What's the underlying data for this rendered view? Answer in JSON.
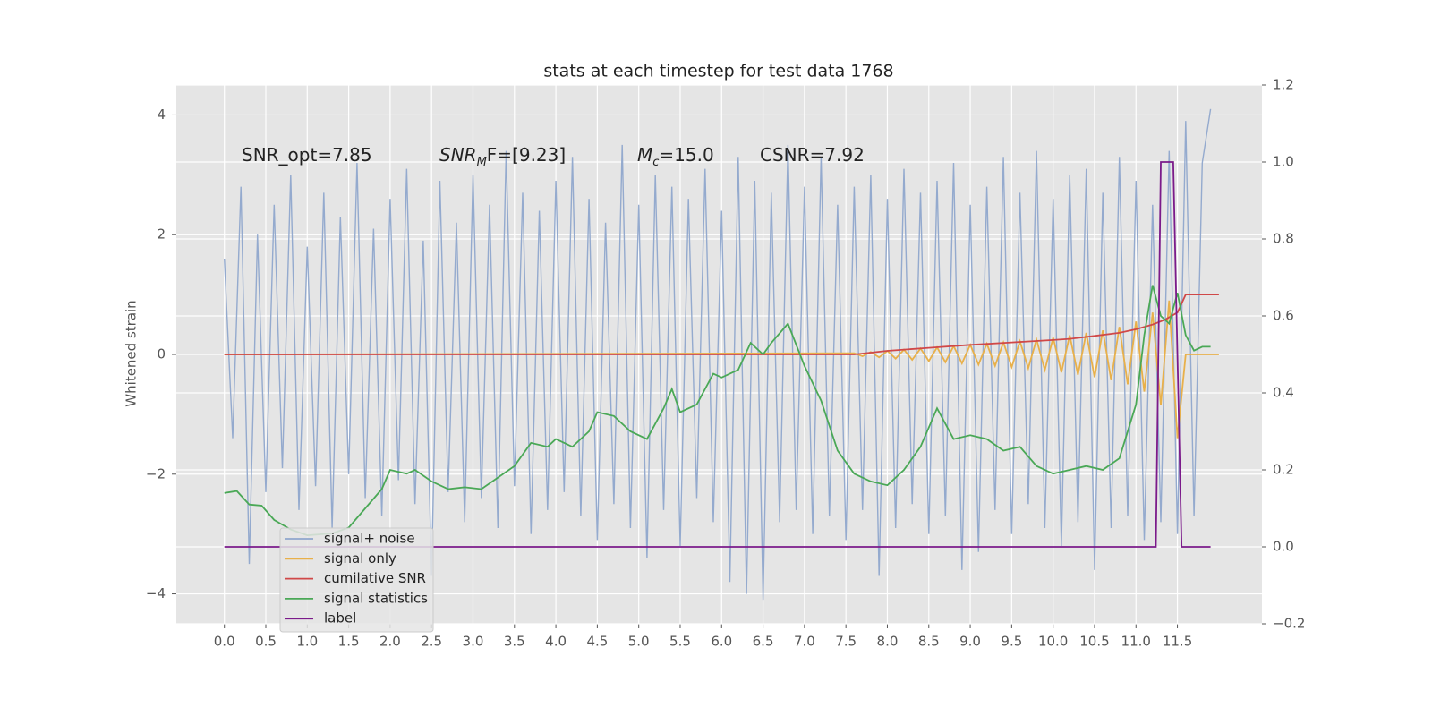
{
  "chart_data": {
    "type": "line",
    "title": "stats at each timestep for test data 1768",
    "y_label": "Whitened strain",
    "grid": true,
    "legend_position": "lower left",
    "xlim": [
      -0.58,
      12.52
    ],
    "ylim": [
      -4.5,
      4.5
    ],
    "y2lim": [
      -0.2,
      1.2
    ],
    "xticks": [
      {
        "value": 0,
        "label": "0.0"
      },
      0.5,
      {
        "value": 1,
        "label": "1.0"
      },
      1.5,
      {
        "value": 2,
        "label": "2.0"
      },
      2.5,
      {
        "value": 3,
        "label": "3.0"
      },
      3.5,
      {
        "value": 4,
        "label": "4.0"
      },
      4.5,
      {
        "value": 5,
        "label": "5.0"
      },
      5.5,
      {
        "value": 6,
        "label": "6.0"
      },
      6.5,
      {
        "value": 7,
        "label": "7.0"
      },
      7.5,
      {
        "value": 8,
        "label": "8.0"
      },
      8.5,
      {
        "value": 9,
        "label": "9.0"
      },
      9.5,
      {
        "value": 10,
        "label": "10.0"
      },
      10.5,
      {
        "value": 11,
        "label": "11.0"
      },
      11.5
    ],
    "yticks": [
      {
        "value": -4,
        "label": "−4"
      },
      {
        "value": -2,
        "label": "−2"
      },
      0,
      2,
      4
    ],
    "y2ticks": [
      {
        "value": -0.2,
        "label": "−0.2"
      },
      {
        "value": 0,
        "label": "0.0"
      },
      0.2,
      0.4,
      0.6,
      0.8,
      {
        "value": 1,
        "label": "1.0"
      },
      1.2
    ],
    "annotations": [
      {
        "text": "SNR_opt=7.85"
      },
      {
        "text": "SNR",
        "sub": "M",
        "rest": "F=[9.23]"
      },
      {
        "text": "M",
        "sub": "c",
        "rest": "=15.0"
      },
      {
        "text": "CSNR=7.92"
      }
    ],
    "series": [
      {
        "name": "signal+ noise",
        "color": "#8fa6cc",
        "x": [
          0,
          0.1,
          0.2,
          0.3,
          0.4,
          0.5,
          0.6,
          0.7,
          0.8,
          0.9,
          1,
          1.1,
          1.2,
          1.3,
          1.4,
          1.5,
          1.6,
          1.7,
          1.8,
          1.9,
          2,
          2.1,
          2.2,
          2.3,
          2.4,
          2.5,
          2.6,
          2.7,
          2.8,
          2.9,
          3,
          3.1,
          3.2,
          3.3,
          3.4,
          3.5,
          3.6,
          3.7,
          3.8,
          3.9,
          4,
          4.1,
          4.2,
          4.3,
          4.4,
          4.5,
          4.6,
          4.7,
          4.8,
          4.9,
          5,
          5.1,
          5.2,
          5.3,
          5.4,
          5.5,
          5.6,
          5.7,
          5.8,
          5.9,
          6,
          6.1,
          6.2,
          6.3,
          6.4,
          6.5,
          6.6,
          6.7,
          6.8,
          6.9,
          7,
          7.1,
          7.2,
          7.3,
          7.4,
          7.5,
          7.6,
          7.7,
          7.8,
          7.9,
          8,
          8.1,
          8.2,
          8.3,
          8.4,
          8.5,
          8.6,
          8.7,
          8.8,
          8.9,
          9,
          9.1,
          9.2,
          9.3,
          9.4,
          9.5,
          9.6,
          9.7,
          9.8,
          9.9,
          10,
          10.1,
          10.2,
          10.3,
          10.4,
          10.5,
          10.6,
          10.7,
          10.8,
          10.9,
          11,
          11.1,
          11.2,
          11.3,
          11.4,
          11.5,
          11.6,
          11.7,
          11.8,
          11.9
        ],
        "values": [
          1.6,
          -1.4,
          2.8,
          -3.5,
          2.0,
          -2.3,
          2.5,
          -1.9,
          3.0,
          -2.6,
          1.8,
          -2.2,
          2.7,
          -2.9,
          2.3,
          -2.0,
          3.2,
          -2.4,
          2.1,
          -2.7,
          2.6,
          -2.1,
          3.1,
          -2.5,
          1.9,
          -3.7,
          2.9,
          -2.3,
          2.2,
          -2.8,
          3.0,
          -2.4,
          2.5,
          -2.9,
          3.4,
          -2.2,
          2.7,
          -3.0,
          2.4,
          -2.6,
          2.9,
          -2.3,
          3.3,
          -2.7,
          2.6,
          -3.1,
          2.2,
          -2.5,
          3.5,
          -2.9,
          2.5,
          -3.4,
          3.0,
          -2.6,
          2.8,
          -3.2,
          2.6,
          -2.4,
          3.1,
          -2.8,
          2.4,
          -3.8,
          3.3,
          -4.0,
          2.9,
          -4.1,
          2.7,
          -2.8,
          3.5,
          -2.6,
          2.8,
          -3.0,
          3.3,
          -2.7,
          2.5,
          -3.1,
          2.8,
          -2.6,
          3.0,
          -3.7,
          2.6,
          -2.9,
          3.1,
          -2.5,
          2.7,
          -3.0,
          2.9,
          -2.7,
          3.2,
          -3.6,
          2.5,
          -3.3,
          2.8,
          -2.6,
          3.3,
          -3.0,
          2.7,
          -2.5,
          3.4,
          -2.9,
          2.6,
          -3.2,
          3.0,
          -2.8,
          3.1,
          -3.6,
          2.7,
          -2.9,
          3.3,
          -2.7,
          2.9,
          -3.1,
          2.5,
          -2.8,
          3.4,
          -3.0,
          3.9,
          -2.7,
          3.2,
          4.1
        ]
      },
      {
        "name": "signal only",
        "color": "#e8b04a",
        "x": [
          0,
          7.6,
          7.7,
          7.8,
          7.9,
          8,
          8.1,
          8.2,
          8.3,
          8.4,
          8.5,
          8.6,
          8.7,
          8.8,
          8.9,
          9,
          9.1,
          9.2,
          9.3,
          9.4,
          9.5,
          9.6,
          9.7,
          9.8,
          9.9,
          10,
          10.1,
          10.2,
          10.3,
          10.4,
          10.5,
          10.6,
          10.7,
          10.8,
          10.9,
          11,
          11.1,
          11.2,
          11.3,
          11.4,
          11.5,
          11.6,
          12
        ],
        "values": [
          0,
          0.02,
          -0.03,
          0.04,
          -0.05,
          0.06,
          -0.07,
          0.08,
          -0.09,
          0.1,
          -0.11,
          0.12,
          -0.13,
          0.14,
          -0.15,
          0.16,
          -0.17,
          0.18,
          -0.19,
          0.2,
          -0.21,
          0.22,
          -0.23,
          0.25,
          -0.26,
          0.28,
          -0.3,
          0.32,
          -0.34,
          0.36,
          -0.38,
          0.4,
          -0.43,
          0.46,
          -0.5,
          0.55,
          -0.62,
          0.7,
          -0.85,
          0.9,
          -1.4,
          0,
          0
        ]
      },
      {
        "name": "cumilative SNR",
        "color": "#d04848",
        "x": [
          0,
          7.6,
          8,
          8.5,
          9,
          9.5,
          10,
          10.2,
          10.5,
          10.8,
          11,
          11.2,
          11.35,
          11.5,
          11.6,
          12
        ],
        "values": [
          0,
          0,
          0.06,
          0.11,
          0.16,
          0.2,
          0.24,
          0.26,
          0.31,
          0.36,
          0.42,
          0.5,
          0.58,
          0.7,
          1.0,
          1.0
        ]
      },
      {
        "name": "signal statistics",
        "color": "#4aa856",
        "axis": "y2",
        "x": [
          0,
          0.15,
          0.3,
          0.45,
          0.6,
          0.8,
          1.0,
          1.3,
          1.5,
          1.7,
          1.9,
          2.0,
          2.2,
          2.3,
          2.5,
          2.7,
          2.9,
          3.1,
          3.3,
          3.5,
          3.7,
          3.9,
          4.0,
          4.2,
          4.4,
          4.5,
          4.7,
          4.9,
          5.1,
          5.3,
          5.4,
          5.5,
          5.7,
          5.9,
          6.0,
          6.2,
          6.35,
          6.5,
          6.6,
          6.8,
          7.0,
          7.2,
          7.4,
          7.6,
          7.8,
          8.0,
          8.2,
          8.4,
          8.6,
          8.8,
          9.0,
          9.2,
          9.4,
          9.6,
          9.8,
          10.0,
          10.2,
          10.4,
          10.6,
          10.8,
          11.0,
          11.1,
          11.2,
          11.3,
          11.4,
          11.5,
          11.6,
          11.7,
          11.8,
          11.9
        ],
        "values": [
          0.14,
          0.145,
          0.11,
          0.107,
          0.07,
          0.045,
          0.03,
          0.035,
          0.05,
          0.1,
          0.15,
          0.2,
          0.19,
          0.2,
          0.17,
          0.15,
          0.155,
          0.15,
          0.18,
          0.21,
          0.27,
          0.26,
          0.28,
          0.26,
          0.3,
          0.35,
          0.34,
          0.3,
          0.28,
          0.36,
          0.41,
          0.35,
          0.37,
          0.45,
          0.44,
          0.46,
          0.53,
          0.5,
          0.53,
          0.58,
          0.47,
          0.38,
          0.25,
          0.19,
          0.17,
          0.16,
          0.2,
          0.26,
          0.36,
          0.28,
          0.29,
          0.28,
          0.25,
          0.26,
          0.21,
          0.19,
          0.2,
          0.21,
          0.2,
          0.23,
          0.37,
          0.55,
          0.68,
          0.6,
          0.58,
          0.66,
          0.55,
          0.51,
          0.52,
          0.52
        ]
      },
      {
        "name": "label",
        "color": "#7b1a8a",
        "axis": "y2",
        "x": [
          0,
          11.24,
          11.3,
          11.45,
          11.55,
          11.9
        ],
        "values": [
          0,
          0,
          1,
          1,
          0,
          0
        ]
      }
    ]
  }
}
